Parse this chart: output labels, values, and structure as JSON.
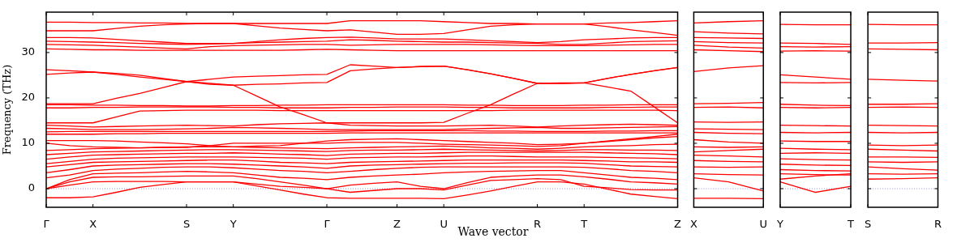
{
  "chart_data": [
    {
      "type": "line",
      "xlabel": "Wave vector",
      "ylabel": "Frequency (THz)",
      "marker": "none",
      "categories": [
        "Γ",
        null,
        "X",
        null,
        null,
        null,
        "S",
        null,
        "Y",
        null,
        null,
        null,
        "Γ",
        null,
        null,
        "Z",
        null,
        "U",
        null,
        null,
        null,
        "R",
        null,
        "T",
        null,
        null,
        null,
        "Z"
      ],
      "ylim": [
        -4.1,
        38.9
      ],
      "yticks": [
        0,
        10,
        20,
        30
      ],
      "ref_lines": [
        {
          "axis": "y",
          "value": 0,
          "color": "#7777cc",
          "line_style": "dotted"
        }
      ],
      "series": [
        {
          "color": "#ff0000",
          "values": [
            36.7,
            36.7,
            36.6,
            36.6,
            36.5,
            36.5,
            36.4,
            36.4,
            36.4,
            36.4,
            36.4,
            36.4,
            36.4,
            37.0,
            37.0,
            37.0,
            37.0,
            36.8,
            36.6,
            36.4,
            36.4,
            36.3,
            36.3,
            36.3,
            36.5,
            36.6,
            36.8,
            37.0
          ]
        },
        {
          "color": "#ff0000",
          "values": [
            34.8,
            34.8,
            34.8,
            35.3,
            35.8,
            36.1,
            36.3,
            36.4,
            36.4,
            35.9,
            35.4,
            35.1,
            34.8,
            35.0,
            34.5,
            34.0,
            34.0,
            34.2,
            35.0,
            35.8,
            36.1,
            36.3,
            36.3,
            36.3,
            35.7,
            35.0,
            34.4,
            33.8
          ]
        },
        {
          "color": "#ff0000",
          "values": [
            33.3,
            33.3,
            33.2,
            32.9,
            32.6,
            32.3,
            32.0,
            32.0,
            32.0,
            32.4,
            32.8,
            33.1,
            33.3,
            33.4,
            33.2,
            33.0,
            33.0,
            33.0,
            32.8,
            32.6,
            32.4,
            32.2,
            32.4,
            32.8,
            33.0,
            33.2,
            33.3,
            33.3
          ]
        },
        {
          "color": "#ff0000",
          "values": [
            32.5,
            32.4,
            32.3,
            32.2,
            32.0,
            31.9,
            31.8,
            31.9,
            32.0,
            32.2,
            32.3,
            32.4,
            32.5,
            32.8,
            32.7,
            32.5,
            32.4,
            32.3,
            32.3,
            32.2,
            32.1,
            32.0,
            31.8,
            31.8,
            32.1,
            32.4,
            32.5,
            32.6
          ]
        },
        {
          "color": "#ff0000",
          "values": [
            31.8,
            31.7,
            31.6,
            31.4,
            31.2,
            31.0,
            30.8,
            31.3,
            31.5,
            31.6,
            31.7,
            31.8,
            31.8,
            31.6,
            31.7,
            31.8,
            31.8,
            31.8,
            31.8,
            31.7,
            31.6,
            31.5,
            31.5,
            31.5,
            31.6,
            31.7,
            31.8,
            31.8
          ]
        },
        {
          "color": "#ff0000",
          "values": [
            30.8,
            30.7,
            30.6,
            30.6,
            30.5,
            30.5,
            30.5,
            30.5,
            30.5,
            30.5,
            30.5,
            30.6,
            30.7,
            30.6,
            30.5,
            30.4,
            30.4,
            30.4,
            30.4,
            30.4,
            30.4,
            30.4,
            30.4,
            30.4,
            30.4,
            30.4,
            30.4,
            30.4
          ]
        },
        {
          "color": "#ff0000",
          "values": [
            26.2,
            26.0,
            25.7,
            25.2,
            24.6,
            24.1,
            23.6,
            24.1,
            24.6,
            24.8,
            24.9,
            25.1,
            25.2,
            27.3,
            27.0,
            26.7,
            26.9,
            27.0,
            26.2,
            25.3,
            24.3,
            23.2,
            23.3,
            23.3,
            24.3,
            25.2,
            26.0,
            26.7
          ]
        },
        {
          "color": "#ff0000",
          "values": [
            25.2,
            25.5,
            25.7,
            25.4,
            25.0,
            24.3,
            23.6,
            23.0,
            22.8,
            23.0,
            23.1,
            23.3,
            23.4,
            26.0,
            26.4,
            26.7,
            26.9,
            27.0,
            26.2,
            25.3,
            24.3,
            23.2,
            23.2,
            23.3,
            22.4,
            21.5,
            18.0,
            14.5
          ]
        },
        {
          "color": "#ff0000",
          "values": [
            18.7,
            18.7,
            18.7,
            19.9,
            21.0,
            22.3,
            23.6,
            23.2,
            22.8,
            20.4,
            18.0,
            16.3,
            14.5,
            14.5,
            14.5,
            14.5,
            14.5,
            14.6,
            16.6,
            18.5,
            20.9,
            23.2,
            23.2,
            23.3,
            24.3,
            25.2,
            26.0,
            26.7
          ]
        },
        {
          "color": "#ff0000",
          "values": [
            18.5,
            18.5,
            18.4,
            18.4,
            18.3,
            18.3,
            18.2,
            18.2,
            18.3,
            18.3,
            18.4,
            18.4,
            18.5,
            18.5,
            18.5,
            18.5,
            18.5,
            18.5,
            18.4,
            18.4,
            18.3,
            18.3,
            18.3,
            18.4,
            18.4,
            18.5,
            18.5,
            18.5
          ]
        },
        {
          "color": "#ff0000",
          "values": [
            17.8,
            17.8,
            17.9,
            17.9,
            18.0,
            18.0,
            18.0,
            18.0,
            17.9,
            17.9,
            17.8,
            17.8,
            17.8,
            17.9,
            17.9,
            18.0,
            18.0,
            18.0,
            17.9,
            17.9,
            17.8,
            17.8,
            17.8,
            17.8,
            17.9,
            17.9,
            18.0,
            18.0
          ]
        },
        {
          "color": "#ff0000",
          "values": [
            14.5,
            14.5,
            14.5,
            15.8,
            17.1,
            17.2,
            17.3,
            17.3,
            17.3,
            17.3,
            17.2,
            17.2,
            17.2,
            17.2,
            17.2,
            17.2,
            17.2,
            17.2,
            17.2,
            17.2,
            17.3,
            17.3,
            17.3,
            17.3,
            17.3,
            17.3,
            17.3,
            17.2
          ]
        },
        {
          "color": "#ff0000",
          "values": [
            14.0,
            13.8,
            13.6,
            13.7,
            13.8,
            13.9,
            14.0,
            13.9,
            13.8,
            14.1,
            14.3,
            14.4,
            14.5,
            14.0,
            13.9,
            13.8,
            13.8,
            13.8,
            13.9,
            14.0,
            13.8,
            13.6,
            13.8,
            14.0,
            14.1,
            14.2,
            14.1,
            14.0
          ]
        },
        {
          "color": "#ff0000",
          "values": [
            13.3,
            13.2,
            13.0,
            13.0,
            13.0,
            13.1,
            13.2,
            13.3,
            13.5,
            13.4,
            13.3,
            13.2,
            13.0,
            13.0,
            13.0,
            13.0,
            13.0,
            13.0,
            13.2,
            13.3,
            13.4,
            13.5,
            13.3,
            13.3,
            13.4,
            13.5,
            13.6,
            13.7
          ]
        },
        {
          "color": "#ff0000",
          "values": [
            12.5,
            12.6,
            12.6,
            12.6,
            12.6,
            12.6,
            12.6,
            12.6,
            12.6,
            12.6,
            12.6,
            12.6,
            12.6,
            12.7,
            12.8,
            12.8,
            12.8,
            12.8,
            12.8,
            12.7,
            12.7,
            12.6,
            12.6,
            12.6,
            12.7,
            12.7,
            12.8,
            12.8
          ]
        },
        {
          "color": "#ff0000",
          "values": [
            12.0,
            12.0,
            12.0,
            12.1,
            12.1,
            12.2,
            12.2,
            12.2,
            12.2,
            12.2,
            12.2,
            12.2,
            12.2,
            12.3,
            12.3,
            12.3,
            12.3,
            12.3,
            12.3,
            12.3,
            12.3,
            12.3,
            12.3,
            12.3,
            12.3,
            12.3,
            12.3,
            12.3
          ]
        },
        {
          "color": "#ff0000",
          "values": [
            10.6,
            10.6,
            10.6,
            10.5,
            10.3,
            10.1,
            9.9,
            9.5,
            9.2,
            9.4,
            9.5,
            10.0,
            10.5,
            10.8,
            10.9,
            11.0,
            10.8,
            10.6,
            10.4,
            10.2,
            10.0,
            9.7,
            9.8,
            10.0,
            10.4,
            10.8,
            11.2,
            11.5
          ]
        },
        {
          "color": "#ff0000",
          "values": [
            10.0,
            9.5,
            9.2,
            9.1,
            9.0,
            9.1,
            9.1,
            9.5,
            10.0,
            10.0,
            10.0,
            10.0,
            10.0,
            10.2,
            10.2,
            10.2,
            10.0,
            9.8,
            9.7,
            9.6,
            9.5,
            9.3,
            9.5,
            10.0,
            10.5,
            11.0,
            11.5,
            12.0
          ]
        },
        {
          "color": "#ff0000",
          "values": [
            8.4,
            8.6,
            8.8,
            8.9,
            9.0,
            9.1,
            9.2,
            9.2,
            9.2,
            9.1,
            9.0,
            8.9,
            8.8,
            9.0,
            9.1,
            9.2,
            9.3,
            9.4,
            9.2,
            9.0,
            8.9,
            8.7,
            8.9,
            9.2,
            9.4,
            9.5,
            9.7,
            9.8
          ]
        },
        {
          "color": "#ff0000",
          "values": [
            7.5,
            7.8,
            8.1,
            8.2,
            8.3,
            8.4,
            8.5,
            8.6,
            8.6,
            8.5,
            8.4,
            8.3,
            8.2,
            8.4,
            8.5,
            8.5,
            8.6,
            8.7,
            8.6,
            8.5,
            8.4,
            8.3,
            8.4,
            8.6,
            8.6,
            8.5,
            8.5,
            8.4
          ]
        },
        {
          "color": "#ff0000",
          "values": [
            6.5,
            7.0,
            7.4,
            7.5,
            7.6,
            7.7,
            7.8,
            7.8,
            7.9,
            7.8,
            7.6,
            7.5,
            7.3,
            7.6,
            7.7,
            7.8,
            7.8,
            7.9,
            8.0,
            8.0,
            8.0,
            8.0,
            8.0,
            8.0,
            7.9,
            7.8,
            7.7,
            7.5
          ]
        },
        {
          "color": "#ff0000",
          "values": [
            5.5,
            6.0,
            6.5,
            6.7,
            6.8,
            6.9,
            7.0,
            7.0,
            7.0,
            6.9,
            6.8,
            6.7,
            6.5,
            6.8,
            6.9,
            7.0,
            7.0,
            7.1,
            7.2,
            7.2,
            7.1,
            7.0,
            7.0,
            7.0,
            6.9,
            6.8,
            6.7,
            6.6
          ]
        },
        {
          "color": "#ff0000",
          "values": [
            4.8,
            5.3,
            5.8,
            5.9,
            6.0,
            6.1,
            6.2,
            6.3,
            6.3,
            6.1,
            5.8,
            5.7,
            5.5,
            5.8,
            5.9,
            6.0,
            6.1,
            6.2,
            6.3,
            6.3,
            6.3,
            6.3,
            6.3,
            6.2,
            6.1,
            5.9,
            5.9,
            5.8
          ]
        },
        {
          "color": "#ff0000",
          "values": [
            3.5,
            4.2,
            5.0,
            5.2,
            5.3,
            5.4,
            5.5,
            5.5,
            5.4,
            5.2,
            5.0,
            4.8,
            4.5,
            5.0,
            5.2,
            5.3,
            5.4,
            5.5,
            5.6,
            5.6,
            5.7,
            5.7,
            5.7,
            5.6,
            5.3,
            5.0,
            4.9,
            4.8
          ]
        },
        {
          "color": "#ff0000",
          "values": [
            2.4,
            3.0,
            4.0,
            4.3,
            4.5,
            4.7,
            4.8,
            4.8,
            4.6,
            4.3,
            4.0,
            3.8,
            3.5,
            3.8,
            4.2,
            4.5,
            4.7,
            4.8,
            4.8,
            4.8,
            4.8,
            4.8,
            4.8,
            4.7,
            4.4,
            4.0,
            3.8,
            3.5
          ]
        },
        {
          "color": "#ff0000",
          "values": [
            0,
            2.0,
            3.3,
            3.4,
            3.5,
            3.7,
            3.8,
            3.7,
            3.5,
            3.0,
            2.5,
            2.3,
            2.0,
            2.5,
            2.8,
            3.0,
            3.2,
            3.5,
            3.7,
            3.8,
            3.9,
            4.0,
            4.0,
            3.5,
            3.0,
            2.5,
            2.3,
            2.0
          ]
        },
        {
          "color": "#ff0000",
          "values": [
            0,
            1.5,
            2.5,
            2.6,
            2.6,
            2.7,
            2.8,
            2.8,
            2.8,
            2.2,
            1.5,
            0.8,
            0,
            0.8,
            1.2,
            1.5,
            0.5,
            0,
            1.3,
            2.5,
            2.8,
            3.0,
            3.0,
            2.6,
            2.1,
            1.5,
            1.3,
            1.0
          ]
        },
        {
          "color": "#ff0000",
          "values": [
            0,
            0.8,
            1.5,
            1.6,
            1.6,
            1.6,
            1.5,
            1.5,
            1.5,
            1.0,
            0.5,
            0.3,
            0,
            -0.8,
            -0.4,
            0,
            0,
            -0.3,
            0.8,
            1.8,
            2.0,
            2.2,
            2.0,
            0.5,
            0.2,
            -0.2,
            -0.3,
            -0.3
          ]
        },
        {
          "color": "#ff0000",
          "values": [
            -2.0,
            -2.0,
            -1.8,
            -0.8,
            0.3,
            0.9,
            1.5,
            1.5,
            1.5,
            0.6,
            -0.3,
            -1.2,
            -2.0,
            -2.1,
            -2.1,
            -2.1,
            -2.1,
            -2.2,
            -1.4,
            -0.5,
            0.5,
            1.5,
            1.5,
            1.0,
            -0.1,
            -1.2,
            -1.7,
            -2.2
          ]
        }
      ]
    },
    {
      "type": "line",
      "marker": "none",
      "tick_labels": "x",
      "categories": [
        "X",
        null,
        "U"
      ],
      "ylim": [
        -4.1,
        38.9
      ],
      "yticks": [
        0,
        10,
        20,
        30
      ],
      "ref_lines": [
        {
          "axis": "y",
          "value": 0,
          "color": "#7777cc",
          "line_style": "dotted"
        }
      ],
      "series": [
        {
          "color": "#ff0000",
          "values": [
            36.5,
            36.8,
            37.0
          ]
        },
        {
          "color": "#ff0000",
          "values": [
            34.6,
            34.3,
            34.1
          ]
        },
        {
          "color": "#ff0000",
          "values": [
            33.3,
            33.2,
            33.1
          ]
        },
        {
          "color": "#ff0000",
          "values": [
            32.4,
            32.2,
            32.1
          ]
        },
        {
          "color": "#ff0000",
          "values": [
            31.6,
            31.2,
            31.0
          ]
        },
        {
          "color": "#ff0000",
          "values": [
            30.6,
            30.4,
            30.2
          ]
        },
        {
          "color": "#ff0000",
          "values": [
            25.8,
            26.6,
            27.1
          ]
        },
        {
          "color": "#ff0000",
          "values": [
            18.7,
            18.8,
            19.0
          ]
        },
        {
          "color": "#ff0000",
          "values": [
            17.9,
            18.0,
            17.8
          ]
        },
        {
          "color": "#ff0000",
          "values": [
            14.7,
            14.6,
            14.7
          ]
        },
        {
          "color": "#ff0000",
          "values": [
            13.2,
            13.1,
            13.0
          ]
        },
        {
          "color": "#ff0000",
          "values": [
            12.4,
            12.2,
            12.1
          ]
        },
        {
          "color": "#ff0000",
          "values": [
            10.8,
            10.3,
            10.0
          ]
        },
        {
          "color": "#ff0000",
          "values": [
            9.2,
            9.1,
            9.2
          ]
        },
        {
          "color": "#ff0000",
          "values": [
            8.1,
            8.4,
            8.7
          ]
        },
        {
          "color": "#ff0000",
          "values": [
            7.4,
            7.2,
            7.0
          ]
        },
        {
          "color": "#ff0000",
          "values": [
            6.2,
            6.0,
            5.9
          ]
        },
        {
          "color": "#ff0000",
          "values": [
            4.8,
            4.7,
            4.8
          ]
        },
        {
          "color": "#ff0000",
          "values": [
            3.3,
            3.1,
            3.0
          ]
        },
        {
          "color": "#ff0000",
          "values": [
            2.4,
            1.5,
            -0.5
          ]
        },
        {
          "color": "#ff0000",
          "values": [
            -2.1,
            -2.1,
            -2.2
          ]
        }
      ]
    },
    {
      "type": "line",
      "marker": "none",
      "tick_labels": "x",
      "categories": [
        "Y",
        null,
        "T"
      ],
      "ylim": [
        -4.1,
        38.9
      ],
      "yticks": [
        0,
        10,
        20,
        30
      ],
      "ref_lines": [
        {
          "axis": "y",
          "value": 0,
          "color": "#7777cc",
          "line_style": "dotted"
        }
      ],
      "series": [
        {
          "color": "#ff0000",
          "values": [
            36.2,
            36.1,
            36.1
          ]
        },
        {
          "color": "#ff0000",
          "values": [
            32.1,
            32.0,
            31.8
          ]
        },
        {
          "color": "#ff0000",
          "values": [
            31.3,
            31.2,
            31.3
          ]
        },
        {
          "color": "#ff0000",
          "values": [
            30.3,
            30.4,
            30.3
          ]
        },
        {
          "color": "#ff0000",
          "values": [
            25.1,
            24.6,
            24.1
          ]
        },
        {
          "color": "#ff0000",
          "values": [
            23.4,
            23.3,
            23.4
          ]
        },
        {
          "color": "#ff0000",
          "values": [
            18.6,
            18.4,
            18.3
          ]
        },
        {
          "color": "#ff0000",
          "values": [
            17.9,
            17.8,
            17.9
          ]
        },
        {
          "color": "#ff0000",
          "values": [
            14.0,
            13.9,
            13.8
          ]
        },
        {
          "color": "#ff0000",
          "values": [
            12.4,
            12.3,
            12.4
          ]
        },
        {
          "color": "#ff0000",
          "values": [
            10.5,
            10.4,
            10.4
          ]
        },
        {
          "color": "#ff0000",
          "values": [
            8.9,
            8.7,
            8.6
          ]
        },
        {
          "color": "#ff0000",
          "values": [
            7.8,
            7.9,
            7.8
          ]
        },
        {
          "color": "#ff0000",
          "values": [
            6.6,
            6.4,
            6.3
          ]
        },
        {
          "color": "#ff0000",
          "values": [
            5.4,
            5.2,
            5.1
          ]
        },
        {
          "color": "#ff0000",
          "values": [
            4.2,
            4.0,
            3.9
          ]
        },
        {
          "color": "#ff0000",
          "values": [
            3.3,
            3.1,
            3.0
          ]
        },
        {
          "color": "#ff0000",
          "values": [
            2.1,
            2.8,
            3.3
          ]
        },
        {
          "color": "#ff0000",
          "values": [
            1.5,
            -0.8,
            0.5
          ]
        }
      ]
    },
    {
      "type": "line",
      "marker": "none",
      "tick_labels": "x",
      "categories": [
        "S",
        null,
        "R"
      ],
      "ylim": [
        -4.1,
        38.9
      ],
      "yticks": [
        0,
        10,
        20,
        30
      ],
      "ref_lines": [
        {
          "axis": "y",
          "value": 0,
          "color": "#7777cc",
          "line_style": "dotted"
        }
      ],
      "series": [
        {
          "color": "#ff0000",
          "values": [
            36.2,
            36.1,
            36.1
          ]
        },
        {
          "color": "#ff0000",
          "values": [
            32.1,
            32.1,
            32.2
          ]
        },
        {
          "color": "#ff0000",
          "values": [
            30.8,
            30.7,
            30.6
          ]
        },
        {
          "color": "#ff0000",
          "values": [
            24.1,
            23.9,
            23.7
          ]
        },
        {
          "color": "#ff0000",
          "values": [
            18.6,
            18.6,
            18.7
          ]
        },
        {
          "color": "#ff0000",
          "values": [
            17.9,
            18.0,
            17.9
          ]
        },
        {
          "color": "#ff0000",
          "values": [
            14.0,
            13.9,
            13.8
          ]
        },
        {
          "color": "#ff0000",
          "values": [
            12.4,
            12.3,
            12.4
          ]
        },
        {
          "color": "#ff0000",
          "values": [
            9.6,
            9.5,
            9.6
          ]
        },
        {
          "color": "#ff0000",
          "values": [
            8.7,
            8.5,
            8.3
          ]
        },
        {
          "color": "#ff0000",
          "values": [
            7.0,
            7.0,
            6.9
          ]
        },
        {
          "color": "#ff0000",
          "values": [
            5.9,
            5.8,
            5.9
          ]
        },
        {
          "color": "#ff0000",
          "values": [
            4.8,
            4.4,
            4.1
          ]
        },
        {
          "color": "#ff0000",
          "values": [
            3.3,
            3.2,
            3.3
          ]
        },
        {
          "color": "#ff0000",
          "values": [
            2.1,
            2.2,
            2.4
          ]
        }
      ]
    }
  ]
}
